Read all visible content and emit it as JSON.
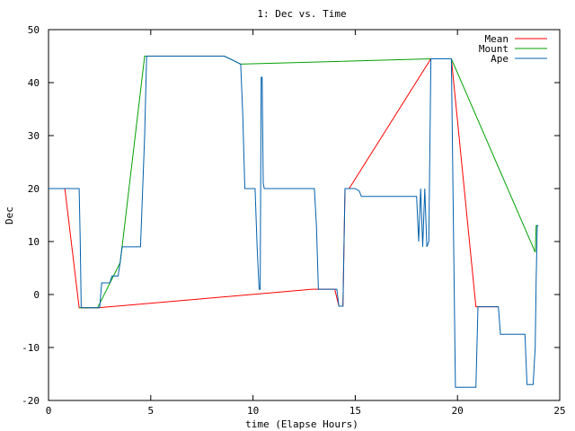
{
  "chart_data": {
    "type": "line",
    "title": "1: Dec vs. Time",
    "xlabel": "time (Elapse Hours)",
    "ylabel": "Dec",
    "xlim": [
      0,
      25
    ],
    "ylim": [
      -20,
      50
    ],
    "xticks": [
      0,
      5,
      10,
      15,
      20,
      25
    ],
    "yticks": [
      -20,
      -10,
      0,
      10,
      20,
      30,
      40,
      50
    ],
    "grid": false,
    "legend_position": "top-right",
    "series": [
      {
        "name": "Mean",
        "color": "#ff0000",
        "points": [
          [
            0,
            20
          ],
          [
            0.8,
            20
          ],
          [
            1.5,
            -2.5
          ],
          [
            2.4,
            -2.5
          ],
          [
            12.9,
            1
          ],
          [
            14.0,
            1
          ],
          [
            14.2,
            -2.2
          ],
          [
            14.4,
            -2.2
          ],
          [
            14.5,
            20
          ],
          [
            14.7,
            20
          ],
          [
            18.7,
            44.5
          ],
          [
            19.7,
            44.5
          ],
          [
            20.9,
            -2.3
          ],
          [
            22.0,
            -2.3
          ]
        ]
      },
      {
        "name": "Mount",
        "color": "#00a000",
        "points": [
          [
            1.5,
            -2.5
          ],
          [
            2.4,
            -2.5
          ],
          [
            3.5,
            6
          ],
          [
            3.6,
            9
          ],
          [
            4.7,
            45
          ],
          [
            8.6,
            45
          ],
          [
            9.4,
            43.5
          ],
          [
            18.7,
            44.5
          ],
          [
            19.7,
            44.5
          ],
          [
            23.8,
            8
          ],
          [
            23.85,
            13
          ],
          [
            23.95,
            13
          ]
        ]
      },
      {
        "name": "Ape",
        "color": "#0060ad",
        "points": [
          [
            0,
            20
          ],
          [
            1.5,
            20
          ],
          [
            1.55,
            10
          ],
          [
            1.6,
            -2.5
          ],
          [
            2.5,
            -2.5
          ],
          [
            2.6,
            2.2
          ],
          [
            3.0,
            2.2
          ],
          [
            3.1,
            3.5
          ],
          [
            3.4,
            3.5
          ],
          [
            3.5,
            6
          ],
          [
            3.6,
            9
          ],
          [
            4.5,
            9
          ],
          [
            4.7,
            30
          ],
          [
            4.8,
            45
          ],
          [
            8.6,
            45
          ],
          [
            9.4,
            43.5
          ],
          [
            9.5,
            34
          ],
          [
            9.6,
            20
          ],
          [
            10.1,
            20
          ],
          [
            10.2,
            9
          ],
          [
            10.3,
            1
          ],
          [
            10.35,
            1
          ],
          [
            10.4,
            41
          ],
          [
            10.45,
            41
          ],
          [
            10.5,
            21
          ],
          [
            10.55,
            20
          ],
          [
            13.0,
            20
          ],
          [
            13.1,
            13
          ],
          [
            13.2,
            1
          ],
          [
            14.1,
            1
          ],
          [
            14.2,
            -2.2
          ],
          [
            14.4,
            -2.2
          ],
          [
            14.5,
            20
          ],
          [
            15.0,
            20
          ],
          [
            15.2,
            19.5
          ],
          [
            15.3,
            18.5
          ],
          [
            18.0,
            18.5
          ],
          [
            18.1,
            10
          ],
          [
            18.2,
            20
          ],
          [
            18.3,
            9
          ],
          [
            18.4,
            20
          ],
          [
            18.5,
            9
          ],
          [
            18.6,
            10
          ],
          [
            18.7,
            44.5
          ],
          [
            19.7,
            44.5
          ],
          [
            19.9,
            -17.5
          ],
          [
            20.9,
            -17.5
          ],
          [
            21.0,
            -2.3
          ],
          [
            22.0,
            -2.3
          ],
          [
            22.1,
            -7.5
          ],
          [
            23.3,
            -7.5
          ],
          [
            23.4,
            -17
          ],
          [
            23.7,
            -17
          ],
          [
            23.8,
            -10
          ],
          [
            23.85,
            3
          ],
          [
            23.9,
            13
          ],
          [
            23.95,
            13
          ]
        ]
      }
    ]
  }
}
